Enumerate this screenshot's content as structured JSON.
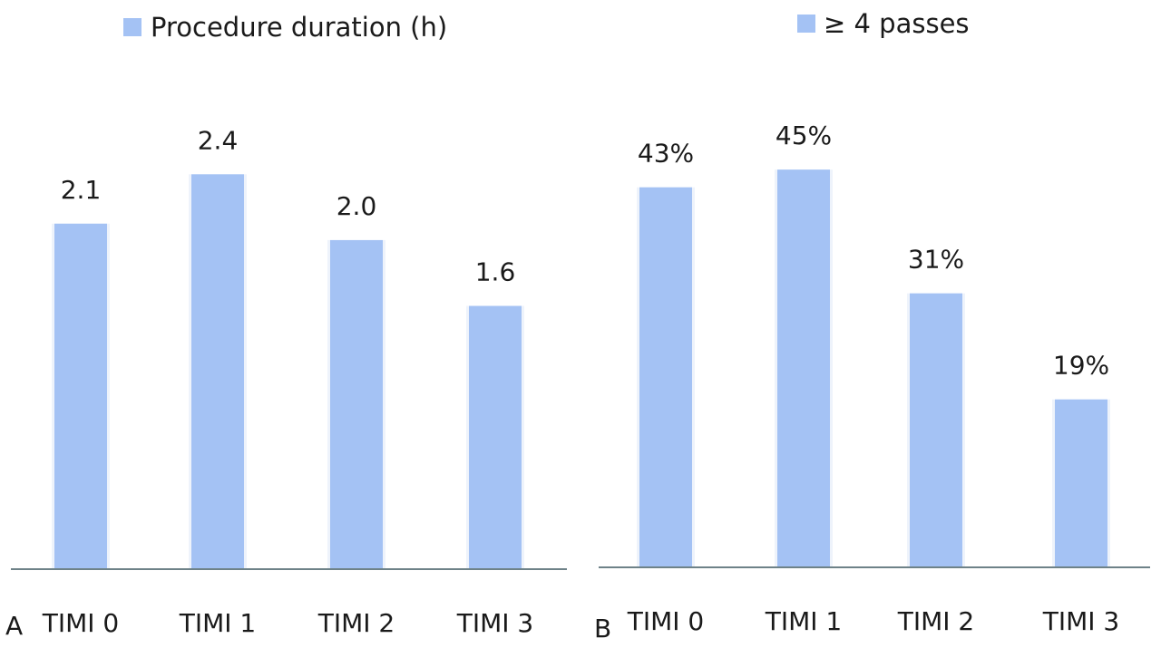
{
  "chart_data": [
    {
      "panel_label": "A",
      "type": "bar",
      "categories": [
        "TIMI 0",
        "TIMI 1",
        "TIMI 2",
        "TIMI 3"
      ],
      "series": [
        {
          "name": "Procedure duration (h)",
          "values": [
            2.1,
            2.4,
            2.0,
            1.6
          ],
          "data_labels": [
            "2.1",
            "2.4",
            "2.0",
            "1.6"
          ]
        }
      ],
      "ylim": [
        0,
        2.6
      ],
      "legend": "top",
      "grid": false,
      "colors": {
        "bar": "#a4c2f4",
        "axis": "#6e8288"
      }
    },
    {
      "panel_label": "B",
      "type": "bar",
      "categories": [
        "TIMI 0",
        "TIMI 1",
        "TIMI 2",
        "TIMI 3"
      ],
      "series": [
        {
          "name": "≥ 4 passes",
          "values": [
            43,
            45,
            31,
            19
          ],
          "data_labels": [
            "43%",
            "45%",
            "31%",
            "19%"
          ]
        }
      ],
      "ylim": [
        0,
        48.4
      ],
      "legend": "top",
      "grid": false,
      "colors": {
        "bar": "#a4c2f4",
        "axis": "#6e8288"
      }
    }
  ]
}
